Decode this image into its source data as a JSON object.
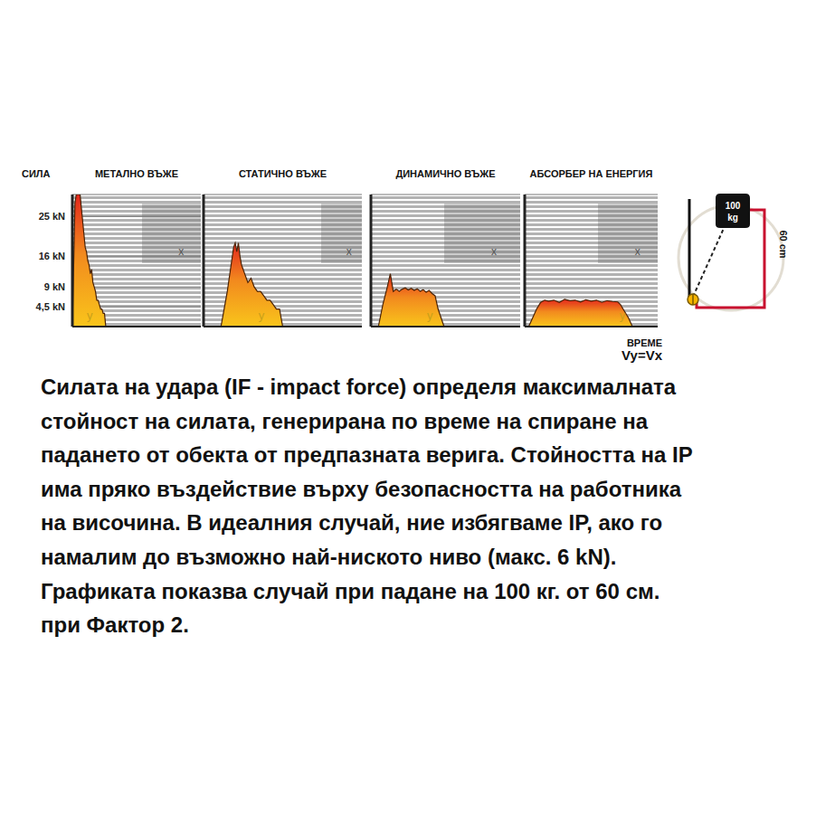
{
  "chart_data": [
    {
      "type": "area",
      "title": "МЕТАЛНО ВЪЖЕ",
      "y_label": "СИЛА",
      "x": [
        0,
        2,
        3,
        4,
        5,
        6,
        7,
        8,
        9,
        10,
        11,
        12,
        13,
        14,
        15,
        16,
        17,
        18,
        19,
        20,
        21,
        22,
        23,
        24,
        25,
        26
      ],
      "values": [
        0,
        28,
        30,
        30,
        30,
        30,
        27,
        24,
        21,
        18,
        17,
        15,
        14,
        12,
        13,
        10,
        9,
        8,
        6,
        6,
        5,
        4,
        4,
        3,
        3,
        0
      ],
      "color": "#f9c51b",
      "xlim": [
        0,
        100
      ],
      "ylim": [
        0,
        30
      ],
      "yticks": [
        {
          "value": 4.5,
          "label": "4,5 kN"
        },
        {
          "value": 9,
          "label": "9 kN"
        },
        {
          "value": 16,
          "label": "16 kN"
        },
        {
          "value": 25,
          "label": "25 kN"
        }
      ],
      "grid": true,
      "tick_labels": "y",
      "annotations": [
        "y",
        "x"
      ]
    },
    {
      "type": "area",
      "title": "СТАТИЧНО ВЪЖЕ",
      "x": [
        11,
        13,
        15,
        17,
        19,
        20,
        21,
        22,
        23,
        24,
        25,
        26,
        27,
        28,
        30,
        32,
        34,
        36,
        38,
        40,
        42,
        44,
        46,
        48,
        50
      ],
      "values": [
        0,
        4,
        8,
        13,
        18,
        19,
        17,
        19,
        16,
        14,
        13,
        12,
        11,
        10,
        11,
        9,
        8,
        8,
        7,
        6,
        6,
        5,
        4,
        4,
        0
      ],
      "color": "#f9c51b",
      "xlim": [
        0,
        100
      ],
      "ylim": [
        0,
        30
      ],
      "yticks": [
        {
          "value": 4.5,
          "label": "4,5 kN"
        },
        {
          "value": 9,
          "label": "9 kN"
        },
        {
          "value": 16,
          "label": "16 kN"
        },
        {
          "value": 25,
          "label": "25 kN"
        }
      ],
      "grid": true,
      "tick_labels": false,
      "annotations": [
        "y",
        "x"
      ]
    },
    {
      "type": "area",
      "title": "ДИНАМИЧНО ВЪЖЕ",
      "x": [
        5,
        8,
        11,
        13,
        15,
        17,
        19,
        21,
        23,
        25,
        27,
        29,
        31,
        33,
        35,
        37,
        39,
        41,
        43,
        45,
        47,
        49
      ],
      "values": [
        0,
        5,
        9,
        12,
        8,
        8.5,
        8,
        8.5,
        8.8,
        8.3,
        8.7,
        8.2,
        8.6,
        8,
        8.4,
        7.8,
        8.2,
        7.5,
        7,
        4,
        2,
        0
      ],
      "color": "#f9c51b",
      "xlim": [
        0,
        100
      ],
      "ylim": [
        0,
        30
      ],
      "yticks": [
        {
          "value": 4.5,
          "label": "4,5 kN"
        },
        {
          "value": 9,
          "label": "9 kN"
        },
        {
          "value": 16,
          "label": "16 kN"
        },
        {
          "value": 25,
          "label": "25 kN"
        }
      ],
      "grid": true,
      "tick_labels": false,
      "annotations": [
        "y",
        "x"
      ]
    },
    {
      "type": "area",
      "title": "АБСОРБЕР НА ЕНЕРГИЯ",
      "x": [
        3,
        6,
        9,
        12,
        15,
        18,
        22,
        26,
        30,
        34,
        38,
        42,
        46,
        50,
        54,
        58,
        62,
        66,
        70,
        72,
        75,
        78,
        81
      ],
      "values": [
        0,
        2,
        4,
        5.5,
        6,
        5.8,
        6,
        5.5,
        6.2,
        5.9,
        6,
        5.6,
        6.1,
        5.8,
        6,
        5.5,
        5.9,
        5.7,
        5.6,
        5,
        3.5,
        2,
        0
      ],
      "color": "#f9c51b",
      "xlim": [
        0,
        100
      ],
      "ylim": [
        0,
        30
      ],
      "yticks": [
        {
          "value": 4.5,
          "label": "4,5 kN"
        },
        {
          "value": 9,
          "label": "9 kN"
        },
        {
          "value": 16,
          "label": "16 kN"
        },
        {
          "value": 25,
          "label": "25 kN"
        }
      ],
      "grid": true,
      "tick_labels": false,
      "annotations": [
        "y",
        "x"
      ]
    }
  ],
  "time_axis": {
    "label": "ВРЕМЕ",
    "note": "Vy=Vx"
  },
  "diagram": {
    "mass": "100",
    "unit": "kg",
    "height": "60 cm"
  },
  "text_lines": [
    "Силата на удара (IF - impact force) определя максималната",
    "стойност на силата, генерирана по време на спиране на",
    "падането от обекта от предпазната верига. Стойността на IP",
    "има пряко въздействие върху безопасността на работника",
    "на височина. В идеалния случай, ние избягваме IP, ако го",
    "намалим до възможно най-ниското ниво (макс. 6 kN).",
    "Графиката показва случай при падане на 100 кг. от 60 см.",
    "при Фактор 2."
  ]
}
